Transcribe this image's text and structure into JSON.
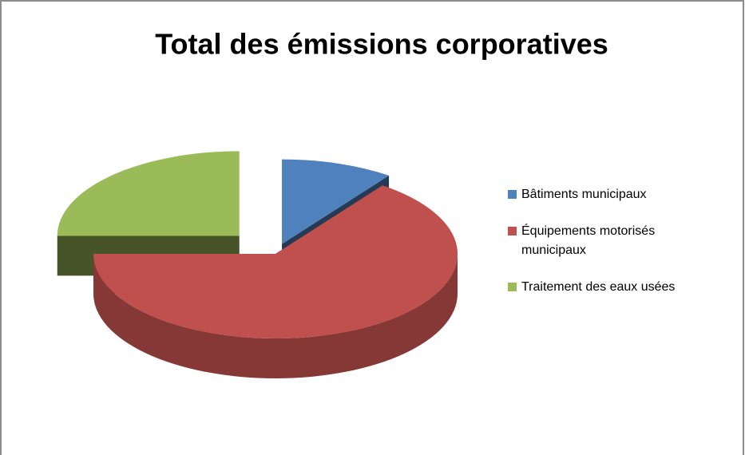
{
  "chart_data": {
    "type": "pie3d",
    "title": "Total des émissions corporatives",
    "categories": [
      "Bâtiments municipaux",
      "Équipements motorisés municipaux",
      "Traitement des eaux usées"
    ],
    "values": [
      10,
      65,
      25
    ],
    "colors": [
      "#4f81bd",
      "#c0504d",
      "#9bbb59"
    ],
    "legend": "right"
  }
}
